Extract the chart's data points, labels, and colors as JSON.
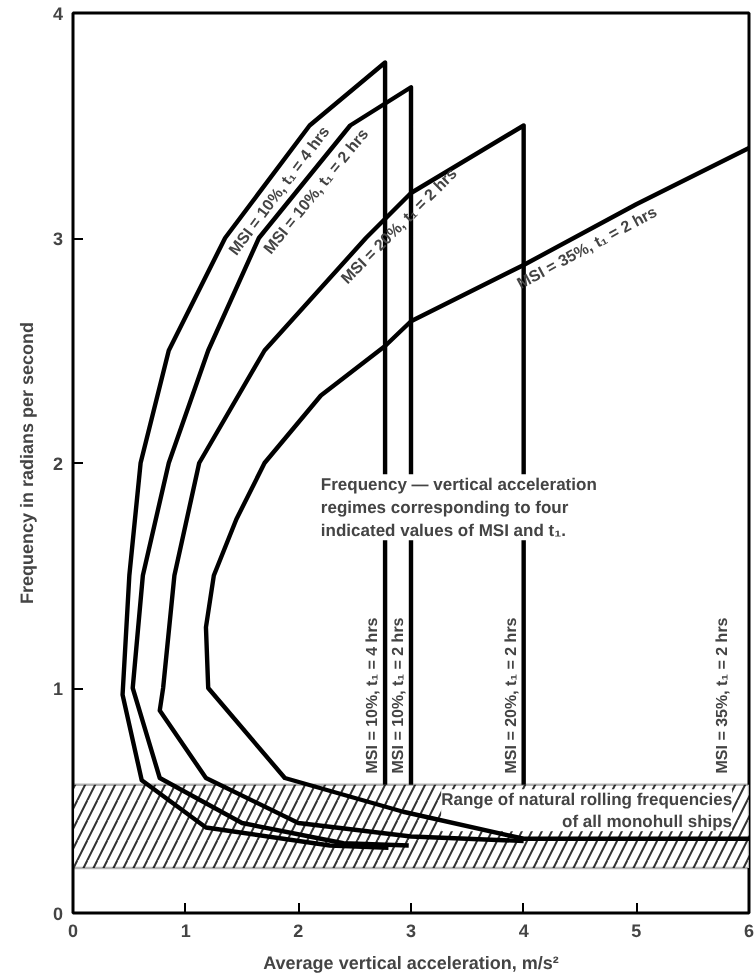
{
  "chart_data": {
    "type": "line",
    "xlabel": "Average vertical acceleration, m/s²",
    "ylabel": "Frequency in radians per second",
    "xlim": [
      0,
      6
    ],
    "ylim": [
      0,
      4
    ],
    "xticks": [
      0,
      1,
      2,
      3,
      4,
      5,
      6
    ],
    "yticks": [
      0,
      1,
      2,
      3,
      4
    ],
    "grid": false,
    "marker": "none",
    "line_style": "solid",
    "series": [
      {
        "name": "MSI = 10%, t₁ = 4 hrs",
        "color": "#000000",
        "x": [
          2.8,
          2.28,
          1.18,
          0.61,
          0.44,
          0.5,
          0.6,
          0.85,
          1.35,
          2.1,
          2.77,
          2.77
        ],
        "values": [
          0.29,
          0.3,
          0.38,
          0.59,
          0.97,
          1.5,
          2.0,
          2.5,
          3.0,
          3.5,
          3.78,
          0.57
        ]
      },
      {
        "name": "MSI = 10%, t₁ = 2 hrs",
        "color": "#000000",
        "x": [
          2.98,
          2.4,
          1.5,
          0.77,
          0.53,
          0.62,
          0.85,
          1.2,
          1.65,
          2.46,
          3.0,
          3.0
        ],
        "values": [
          0.3,
          0.31,
          0.4,
          0.6,
          1.0,
          1.5,
          2.0,
          2.5,
          3.0,
          3.5,
          3.67,
          0.57
        ]
      },
      {
        "name": "MSI = 20%, t₁ = 2 hrs",
        "color": "#000000",
        "x": [
          4.0,
          3.0,
          2.0,
          1.18,
          0.77,
          0.8,
          0.9,
          1.12,
          1.7,
          2.6,
          3.0,
          4.0,
          4.0
        ],
        "values": [
          0.32,
          0.34,
          0.4,
          0.6,
          0.9,
          1.0,
          1.5,
          2.0,
          2.5,
          3.0,
          3.2,
          3.5,
          0.57
        ]
      },
      {
        "name": "MSI = 35%, t₁ = 2 hrs",
        "color": "#000000",
        "x": [
          6.0,
          4.0,
          2.93,
          1.88,
          1.2,
          1.18,
          1.25,
          1.45,
          1.7,
          2.2,
          2.77,
          3.0,
          4.0,
          5.0,
          6.0
        ],
        "values": [
          0.33,
          0.33,
          0.45,
          0.6,
          1.0,
          1.27,
          1.5,
          1.75,
          2.0,
          2.3,
          2.52,
          2.63,
          2.88,
          3.15,
          3.4
        ]
      }
    ],
    "bands": [
      {
        "axis": "y",
        "from": 0.2,
        "to": 0.57,
        "label": "Range of natural rolling frequencies of all monohull ships"
      }
    ],
    "annotations": [
      "Frequency — vertical acceleration regimes corresponding to four indicated values of MSI and t₁."
    ]
  }
}
